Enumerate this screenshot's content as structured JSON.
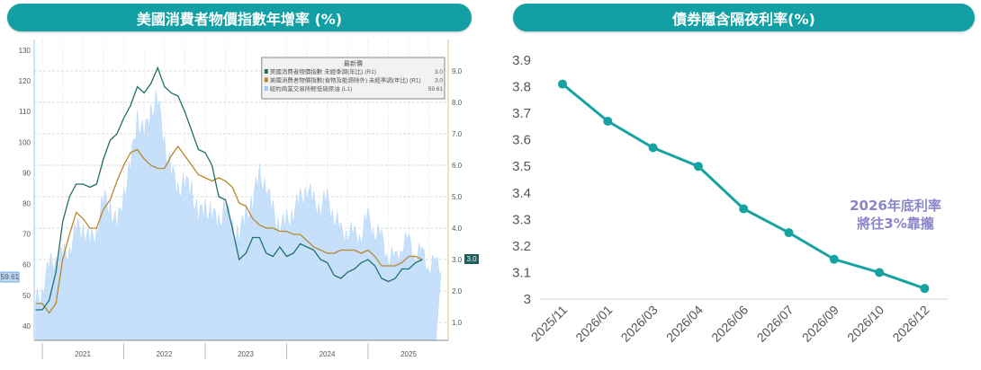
{
  "left_header": {
    "title": "美國消費者物價指數年增率 (%)"
  },
  "right_header": {
    "title": "債券隱含隔夜利率(%)"
  },
  "chart_data": [
    {
      "type": "line",
      "title": "美國消費者物價指數年增率 (%)",
      "x_start": "2020-12",
      "x_tick_labels": [
        "2021",
        "2022",
        "2023",
        "2024",
        "2025"
      ],
      "left_axis": {
        "ylim": [
          35,
          130
        ],
        "ticks": [
          40,
          50,
          60,
          70,
          80,
          90,
          100,
          110,
          120,
          130
        ]
      },
      "right_axis": {
        "ylim": [
          0.2,
          9.6
        ],
        "ticks": [
          "1.0",
          "2.0",
          "3.0",
          "4.0",
          "5.0",
          "6.0",
          "7.0",
          "8.0",
          "9.0"
        ]
      },
      "legend": {
        "header": "最新價",
        "placement": "top-right"
      },
      "series": [
        {
          "name": "美國消費者物價指數 未經季調(年比) (R1)",
          "latest": "3.0",
          "axis": "right",
          "color": "#1f6f6b",
          "values": [
            1.4,
            1.4,
            1.7,
            2.6,
            4.2,
            5.0,
            5.4,
            5.4,
            5.3,
            5.4,
            6.2,
            6.8,
            7.0,
            7.5,
            7.9,
            8.5,
            8.3,
            8.6,
            9.1,
            8.5,
            8.3,
            8.2,
            7.7,
            7.1,
            6.5,
            6.4,
            6.0,
            5.0,
            4.9,
            4.0,
            3.0,
            3.2,
            3.7,
            3.7,
            3.2,
            3.1,
            3.4,
            3.1,
            3.2,
            3.5,
            3.4,
            3.3,
            3.0,
            2.9,
            2.5,
            2.4,
            2.6,
            2.7,
            2.9,
            3.0,
            2.8,
            2.4,
            2.3,
            2.4,
            2.7,
            2.7,
            2.9,
            3.0
          ]
        },
        {
          "name": "美國消費者物價指數(食物及能源除外) 未經季調(年比) (R1)",
          "latest": "3.0",
          "axis": "right",
          "color": "#b8862b",
          "values": [
            1.6,
            1.6,
            1.3,
            1.6,
            3.0,
            3.8,
            4.5,
            4.3,
            4.0,
            4.0,
            4.6,
            4.9,
            5.5,
            6.0,
            6.4,
            6.5,
            6.2,
            6.0,
            5.9,
            5.9,
            6.3,
            6.6,
            6.3,
            6.0,
            5.7,
            5.6,
            5.5,
            5.6,
            5.5,
            5.3,
            4.8,
            4.7,
            4.3,
            4.1,
            4.0,
            4.0,
            3.9,
            3.9,
            3.8,
            3.8,
            3.6,
            3.4,
            3.3,
            3.2,
            3.2,
            3.3,
            3.3,
            3.3,
            3.2,
            3.3,
            3.1,
            2.8,
            2.8,
            2.8,
            2.9,
            3.1,
            3.1,
            3.0
          ]
        },
        {
          "name": "紐約商業交易所輕低硫原油 (L1)",
          "latest": "59.61",
          "axis": "left",
          "color": "#c6e0fb",
          "type": "area",
          "values": [
            47,
            52,
            59,
            62,
            62,
            65,
            71,
            72,
            67,
            71,
            81,
            79,
            72,
            83,
            92,
            108,
            102,
            110,
            114,
            99,
            91,
            84,
            87,
            84,
            76,
            78,
            77,
            73,
            80,
            71,
            70,
            76,
            81,
            89,
            85,
            77,
            72,
            74,
            77,
            81,
            85,
            80,
            79,
            81,
            76,
            70,
            71,
            69,
            70,
            75,
            71,
            68,
            63,
            61,
            67,
            67,
            64,
            63,
            60,
            59.61
          ]
        }
      ],
      "value_tags": {
        "left": "59.61",
        "right": "3.0"
      }
    },
    {
      "type": "line",
      "title": "債券隱含隔夜利率(%)",
      "categories": [
        "2025/11",
        "2026/01",
        "2026/03",
        "2026/04",
        "2026/06",
        "2026/07",
        "2026/09",
        "2026/10",
        "2026/12"
      ],
      "values": [
        3.81,
        3.67,
        3.57,
        3.5,
        3.34,
        3.25,
        3.15,
        3.1,
        3.04
      ],
      "ylim": [
        3.0,
        3.9
      ],
      "y_tick_labels": [
        "3",
        "3.1",
        "3.2",
        "3.3",
        "3.4",
        "3.5",
        "3.6",
        "3.7",
        "3.8",
        "3.9"
      ],
      "color": "#17a2a2",
      "annotation": {
        "line1": "2026年底利率",
        "line2": "將往3%靠攏",
        "color": "#8b85c9"
      }
    }
  ]
}
